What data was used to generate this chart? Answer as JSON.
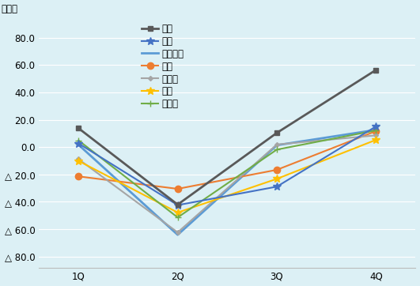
{
  "title": "",
  "ylabel": "（％）",
  "quarters": [
    "1Q",
    "2Q",
    "3Q",
    "4Q"
  ],
  "series": [
    {
      "label": "タイ",
      "values": [
        13.8,
        -42.0,
        10.4,
        56.4
      ],
      "color": "#595959",
      "marker": "s",
      "markersize": 5,
      "linewidth": 2.0,
      "zorder": 5
    },
    {
      "label": "韓国",
      "values": [
        2.7,
        -42.4,
        -28.9,
        15.1
      ],
      "color": "#4472C4",
      "marker": "*",
      "markersize": 7,
      "linewidth": 1.5,
      "zorder": 4
    },
    {
      "label": "メキシコ",
      "values": [
        1.7,
        -64.1,
        1.4,
        12.6
      ],
      "color": "#5B9BD5",
      "marker": null,
      "markersize": 5,
      "linewidth": 2.0,
      "zorder": 3
    },
    {
      "label": "中国",
      "values": [
        -21.4,
        -30.5,
        -16.6,
        11.7
      ],
      "color": "#ED7D31",
      "marker": "o",
      "markersize": 6,
      "linewidth": 1.5,
      "zorder": 3
    },
    {
      "label": "カナダ",
      "values": [
        -8.8,
        -62.3,
        1.9,
        8.6
      ],
      "color": "#A5A5A5",
      "marker": "D",
      "markersize": 3,
      "linewidth": 1.5,
      "zorder": 3
    },
    {
      "label": "日本",
      "values": [
        -10.1,
        -47.8,
        -23.2,
        5.3
      ],
      "color": "#FFC000",
      "marker": "*",
      "markersize": 7,
      "linewidth": 1.5,
      "zorder": 3
    },
    {
      "label": "ドイツ",
      "values": [
        4.9,
        -51.4,
        -1.8,
        12.2
      ],
      "color": "#70AD47",
      "marker": "+",
      "markersize": 6,
      "linewidth": 1.5,
      "zorder": 3
    }
  ],
  "ylim": [
    -88,
    92
  ],
  "yticks": [
    80,
    60,
    40,
    20,
    0,
    -20,
    -40,
    -60,
    -80
  ],
  "ytick_labels": [
    "80.0",
    "60.0",
    "40.0",
    "20.0",
    "0.0",
    "△ 20.0",
    "△ 40.0",
    "△ 60.0",
    "△ 80.0"
  ],
  "background_color": "#DCF0F5",
  "grid_color": "#FFFFFF",
  "legend_fontsize": 8.5,
  "tick_fontsize": 8.5,
  "ylabel_fontsize": 8.5
}
